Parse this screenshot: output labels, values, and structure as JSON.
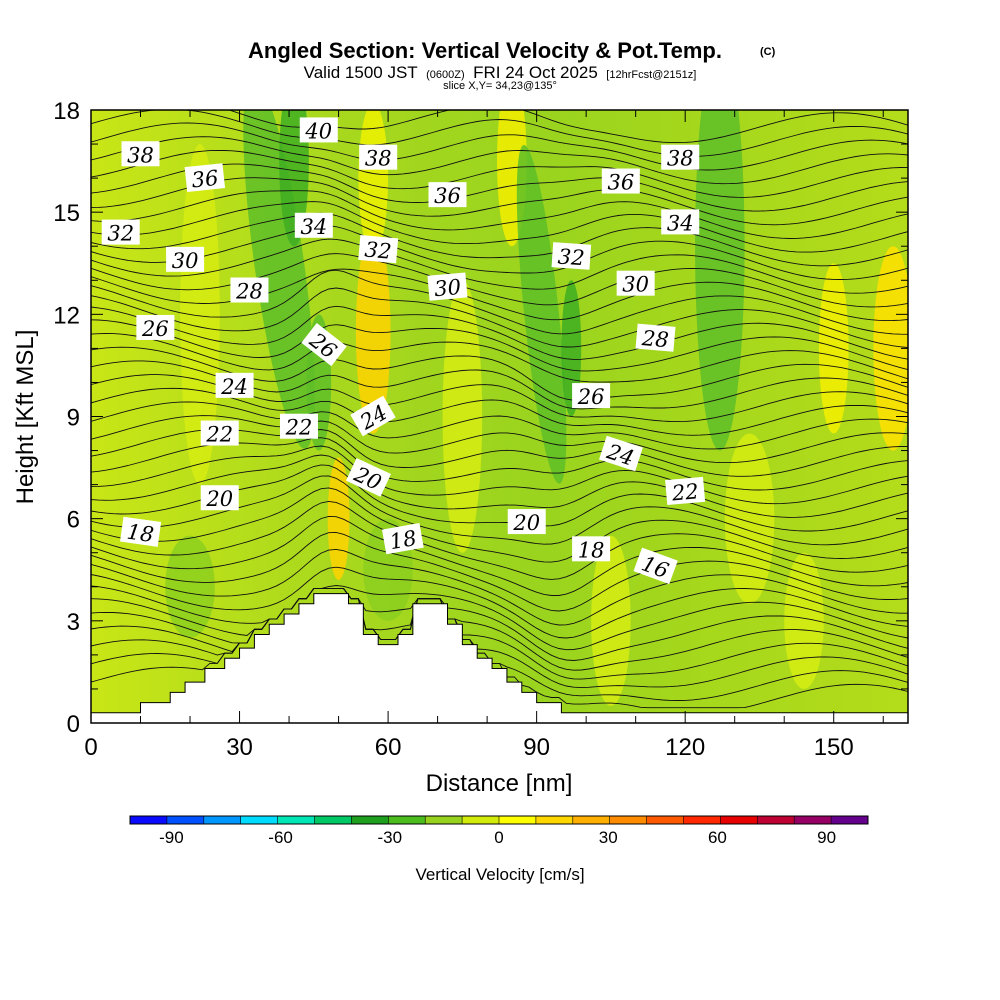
{
  "title": {
    "main": "Angled Section: Vertical Velocity & Pot.Temp.",
    "copyright": "(C)",
    "valid_prefix": "Valid 1500 JST",
    "valid_z": "(0600Z)",
    "valid_date": "FRI 24 Oct 2025",
    "fcst": "[12hrFcst@2151z]",
    "slice": "slice X,Y= 34,23@135°"
  },
  "chart_data": {
    "type": "heatmap",
    "xlabel": "Distance [nm]",
    "ylabel": "Height [Kft MSL]",
    "xlim": [
      0,
      165
    ],
    "ylim": [
      0,
      18
    ],
    "x_ticks": [
      "0",
      "30",
      "60",
      "90",
      "120",
      "150"
    ],
    "x_tick_values": [
      0,
      30,
      60,
      90,
      120,
      150
    ],
    "y_ticks": [
      "0",
      "3",
      "6",
      "9",
      "12",
      "15",
      "18"
    ],
    "y_tick_values": [
      0,
      3,
      6,
      9,
      12,
      15,
      18
    ],
    "terrain": [
      [
        0,
        0.3
      ],
      [
        10,
        0.3
      ],
      [
        10,
        0.6
      ],
      [
        16,
        0.6
      ],
      [
        16,
        0.9
      ],
      [
        19,
        0.9
      ],
      [
        19,
        1.2
      ],
      [
        23,
        1.2
      ],
      [
        23,
        1.6
      ],
      [
        27,
        1.6
      ],
      [
        27,
        1.9
      ],
      [
        30,
        1.9
      ],
      [
        30,
        2.2
      ],
      [
        33,
        2.2
      ],
      [
        33,
        2.6
      ],
      [
        36,
        2.6
      ],
      [
        36,
        2.9
      ],
      [
        39,
        2.9
      ],
      [
        39,
        3.2
      ],
      [
        42,
        3.2
      ],
      [
        42,
        3.5
      ],
      [
        45,
        3.5
      ],
      [
        45,
        3.8
      ],
      [
        52,
        3.8
      ],
      [
        52,
        3.5
      ],
      [
        55,
        3.5
      ],
      [
        55,
        2.6
      ],
      [
        58,
        2.6
      ],
      [
        58,
        2.3
      ],
      [
        62,
        2.3
      ],
      [
        62,
        2.6
      ],
      [
        65,
        2.6
      ],
      [
        65,
        3.5
      ],
      [
        72,
        3.5
      ],
      [
        72,
        2.9
      ],
      [
        75,
        2.9
      ],
      [
        75,
        2.3
      ],
      [
        78,
        2.3
      ],
      [
        78,
        1.9
      ],
      [
        81,
        1.9
      ],
      [
        81,
        1.6
      ],
      [
        84,
        1.6
      ],
      [
        84,
        1.2
      ],
      [
        87,
        1.2
      ],
      [
        87,
        0.9
      ],
      [
        90,
        0.9
      ],
      [
        90,
        0.6
      ],
      [
        95,
        0.6
      ],
      [
        95,
        0.3
      ],
      [
        165,
        0.3
      ]
    ],
    "theta_labels": [
      {
        "x": 10,
        "y": 16.7,
        "text": "38",
        "angle": 0
      },
      {
        "x": 23,
        "y": 16.0,
        "text": "36",
        "angle": -6
      },
      {
        "x": 46,
        "y": 17.4,
        "text": "40",
        "angle": 0
      },
      {
        "x": 58,
        "y": 16.6,
        "text": "38",
        "angle": 0
      },
      {
        "x": 72,
        "y": 15.5,
        "text": "36",
        "angle": 0
      },
      {
        "x": 107,
        "y": 15.9,
        "text": "36",
        "angle": 0
      },
      {
        "x": 119,
        "y": 16.6,
        "text": "38",
        "angle": 0
      },
      {
        "x": 6,
        "y": 14.4,
        "text": "32",
        "angle": 0
      },
      {
        "x": 19,
        "y": 13.6,
        "text": "30",
        "angle": 0
      },
      {
        "x": 45,
        "y": 14.6,
        "text": "34",
        "angle": 0
      },
      {
        "x": 58,
        "y": 13.9,
        "text": "32",
        "angle": 5
      },
      {
        "x": 72,
        "y": 12.8,
        "text": "30",
        "angle": -5
      },
      {
        "x": 97,
        "y": 13.7,
        "text": "32",
        "angle": 4
      },
      {
        "x": 110,
        "y": 12.9,
        "text": "30",
        "angle": 0
      },
      {
        "x": 119,
        "y": 14.7,
        "text": "34",
        "angle": 0
      },
      {
        "x": 32,
        "y": 12.7,
        "text": "28",
        "angle": 0
      },
      {
        "x": 13,
        "y": 11.6,
        "text": "26",
        "angle": 0
      },
      {
        "x": 47,
        "y": 11.1,
        "text": "26",
        "angle": 38
      },
      {
        "x": 114,
        "y": 11.3,
        "text": "28",
        "angle": 5
      },
      {
        "x": 29,
        "y": 9.9,
        "text": "24",
        "angle": 0
      },
      {
        "x": 57,
        "y": 9.0,
        "text": "24",
        "angle": -30
      },
      {
        "x": 101,
        "y": 9.6,
        "text": "26",
        "angle": 0
      },
      {
        "x": 26,
        "y": 8.5,
        "text": "22",
        "angle": 0
      },
      {
        "x": 42,
        "y": 8.7,
        "text": "22",
        "angle": 0
      },
      {
        "x": 107,
        "y": 7.9,
        "text": "24",
        "angle": 18
      },
      {
        "x": 56,
        "y": 7.2,
        "text": "20",
        "angle": 25
      },
      {
        "x": 26,
        "y": 6.6,
        "text": "20",
        "angle": 0
      },
      {
        "x": 120,
        "y": 6.8,
        "text": "22",
        "angle": -5
      },
      {
        "x": 10,
        "y": 5.6,
        "text": "18",
        "angle": 8
      },
      {
        "x": 63,
        "y": 5.4,
        "text": "18",
        "angle": -10
      },
      {
        "x": 88,
        "y": 5.9,
        "text": "20",
        "angle": 0
      },
      {
        "x": 101,
        "y": 5.1,
        "text": "18",
        "angle": 0
      },
      {
        "x": 114,
        "y": 4.6,
        "text": "16",
        "angle": 20
      }
    ]
  },
  "colorbar": {
    "label": "Vertical Velocity [cm/s]",
    "ticks": [
      "-90",
      "-60",
      "-30",
      "0",
      "30",
      "60",
      "90"
    ],
    "colors": [
      "#0a0aff",
      "#0050ff",
      "#0096ff",
      "#00dcff",
      "#00e6b4",
      "#00c864",
      "#1ea01e",
      "#4bbe1e",
      "#96d21e",
      "#d2eb0a",
      "#ffff00",
      "#ffd700",
      "#ffaf00",
      "#ff8c00",
      "#ff5a00",
      "#ff2800",
      "#e60000",
      "#be0032",
      "#960064",
      "#64008c"
    ]
  }
}
